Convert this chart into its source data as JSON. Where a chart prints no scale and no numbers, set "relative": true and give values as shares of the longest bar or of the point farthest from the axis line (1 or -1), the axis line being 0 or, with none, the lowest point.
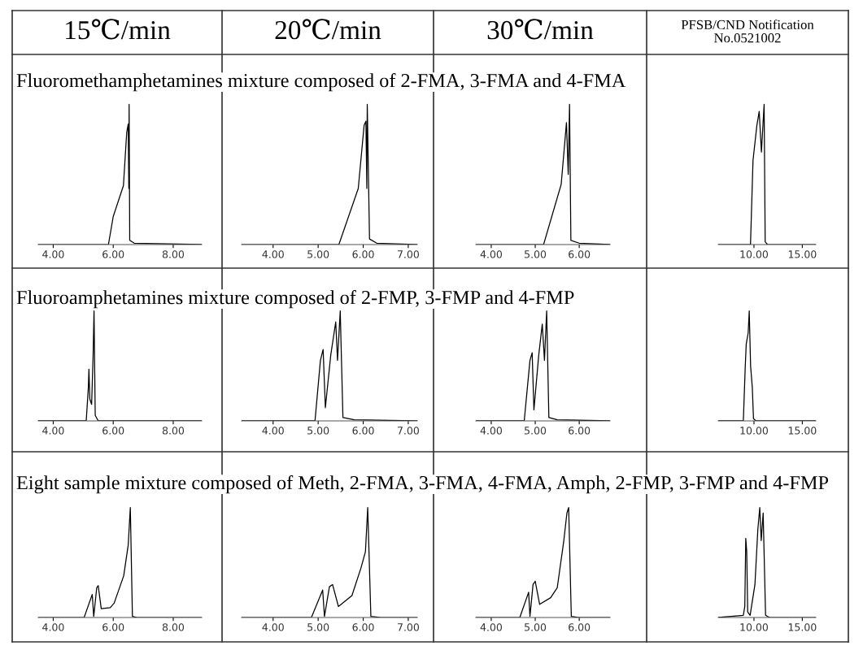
{
  "chart_data": [
    {
      "type": "line",
      "title": "15℃/min",
      "subtitle": "Fluoromethamphetamines mixture composed of 2-FMA, 3-FMA and 4-FMA",
      "relative": true,
      "x": [
        3.5,
        5.84,
        6.0,
        6.34,
        6.45,
        6.5,
        6.52,
        6.53,
        6.55,
        6.7,
        8.95
      ],
      "series": [
        {
          "color": "#000000",
          "values": [
            0,
            0,
            0.2,
            0.42,
            0.8,
            0.86,
            0.4,
            1.0,
            0.03,
            0.01,
            0
          ]
        }
      ],
      "xlim": [
        3.5,
        8.95
      ],
      "xticks": [
        {
          "value": 4,
          "label": "4.00"
        },
        {
          "value": 6,
          "label": "6.00"
        },
        {
          "value": 8,
          "label": "8.00"
        }
      ],
      "tick_labels": "x"
    },
    {
      "type": "line",
      "title": "20℃/min",
      "relative": true,
      "x": [
        3.3,
        5.46,
        5.89,
        6.02,
        6.06,
        6.08,
        6.09,
        6.14,
        6.3,
        7.2
      ],
      "series": [
        {
          "color": "#000000",
          "values": [
            0,
            0,
            0.4,
            0.85,
            0.88,
            0.4,
            1.0,
            0.04,
            0.01,
            0
          ]
        }
      ],
      "xlim": [
        3.3,
        7.2
      ],
      "xticks": [
        {
          "value": 4,
          "label": "4.00"
        },
        {
          "value": 5,
          "label": "5.00"
        },
        {
          "value": 6,
          "label": "6.00"
        },
        {
          "value": 7,
          "label": "7.00"
        }
      ],
      "tick_labels": "x"
    },
    {
      "type": "line",
      "title": "30℃/min",
      "relative": true,
      "x": [
        3.65,
        5.19,
        5.59,
        5.71,
        5.75,
        5.78,
        5.81,
        6.0,
        6.7
      ],
      "series": [
        {
          "color": "#000000",
          "values": [
            0,
            0,
            0.43,
            0.87,
            0.5,
            1.0,
            0.03,
            0.01,
            0
          ]
        }
      ],
      "xlim": [
        3.65,
        6.7
      ],
      "xticks": [
        {
          "value": 4,
          "label": "4.00"
        },
        {
          "value": 5,
          "label": "5.00"
        },
        {
          "value": 6,
          "label": "6.00"
        }
      ],
      "tick_labels": "x"
    },
    {
      "type": "line",
      "title": "PFSB/CND Notification\nNo.0521002",
      "relative": true,
      "x": [
        6.3,
        9.64,
        9.9,
        10.3,
        10.54,
        10.77,
        11.05,
        11.16,
        11.4,
        16.4
      ],
      "series": [
        {
          "color": "#000000",
          "values": [
            0,
            0,
            0.6,
            0.85,
            0.95,
            0.66,
            1.0,
            0.02,
            0,
            0
          ]
        }
      ],
      "xlim": [
        6.3,
        16.4
      ],
      "xticks": [
        {
          "value": 10,
          "label": "10.00"
        },
        {
          "value": 15,
          "label": "15.00"
        }
      ],
      "tick_labels": "x"
    },
    {
      "type": "line",
      "subtitle": "Fluoroamphetamines mixture composed of 2-FMP, 3-FMP and 4-FMP",
      "relative": true,
      "x": [
        3.5,
        5.1,
        5.17,
        5.19,
        5.22,
        5.28,
        5.33,
        5.36,
        5.4,
        5.5,
        8.95
      ],
      "series": [
        {
          "color": "#000000",
          "values": [
            0,
            0,
            0.3,
            0.47,
            0.2,
            0.15,
            0.6,
            1.0,
            0.05,
            0,
            0
          ]
        }
      ],
      "xlim": [
        3.5,
        8.95
      ],
      "xticks": [
        {
          "value": 4,
          "label": "4.00"
        },
        {
          "value": 6,
          "label": "6.00"
        },
        {
          "value": 8,
          "label": "8.00"
        }
      ],
      "tick_labels": "x"
    },
    {
      "type": "line",
      "relative": true,
      "x": [
        3.3,
        4.93,
        5.05,
        5.11,
        5.16,
        5.28,
        5.39,
        5.43,
        5.49,
        5.55,
        5.8,
        7.2
      ],
      "series": [
        {
          "color": "#000000",
          "values": [
            0,
            0,
            0.55,
            0.65,
            0.12,
            0.6,
            0.9,
            0.55,
            1.0,
            0.03,
            0.01,
            0
          ]
        }
      ],
      "xlim": [
        3.3,
        7.2
      ],
      "xticks": [
        {
          "value": 4,
          "label": "4.00"
        },
        {
          "value": 5,
          "label": "5.00"
        },
        {
          "value": 6,
          "label": "6.00"
        },
        {
          "value": 7,
          "label": "7.00"
        }
      ],
      "tick_labels": "x"
    },
    {
      "type": "line",
      "relative": true,
      "x": [
        3.65,
        4.75,
        4.88,
        4.93,
        4.97,
        5.08,
        5.16,
        5.21,
        5.26,
        5.31,
        5.5,
        6.7
      ],
      "series": [
        {
          "color": "#000000",
          "values": [
            0,
            0,
            0.55,
            0.62,
            0.1,
            0.6,
            0.88,
            0.55,
            1.0,
            0.03,
            0.01,
            0
          ]
        }
      ],
      "xlim": [
        3.65,
        6.7
      ],
      "xticks": [
        {
          "value": 4,
          "label": "4.00"
        },
        {
          "value": 5,
          "label": "5.00"
        },
        {
          "value": 6,
          "label": "6.00"
        }
      ],
      "tick_labels": "x"
    },
    {
      "type": "line",
      "relative": true,
      "x": [
        6.3,
        8.9,
        9.1,
        9.2,
        9.4,
        9.51,
        9.65,
        9.83,
        9.95,
        10.2,
        16.4
      ],
      "series": [
        {
          "color": "#000000",
          "values": [
            0,
            0,
            0.5,
            0.7,
            0.8,
            1.0,
            0.5,
            0.3,
            0.02,
            0,
            0
          ]
        }
      ],
      "xlim": [
        6.3,
        16.4
      ],
      "xticks": [
        {
          "value": 10,
          "label": "10.00"
        },
        {
          "value": 15,
          "label": "15.00"
        }
      ],
      "tick_labels": "x"
    },
    {
      "type": "line",
      "subtitle": "Eight sample mixture composed of Meth, 2-FMA, 3-FMA, 4-FMA, Amph, 2-FMP, 3-FMP and 4-FMP",
      "relative": true,
      "x": [
        3.5,
        5.03,
        5.3,
        5.35,
        5.45,
        5.5,
        5.6,
        5.9,
        6.03,
        6.35,
        6.5,
        6.57,
        6.64,
        6.8,
        8.95
      ],
      "series": [
        {
          "color": "#000000",
          "values": [
            0,
            0,
            0.21,
            0.01,
            0.27,
            0.29,
            0.08,
            0.09,
            0.13,
            0.38,
            0.66,
            1.0,
            0.01,
            0,
            0
          ]
        }
      ],
      "xlim": [
        3.5,
        8.95
      ],
      "xticks": [
        {
          "value": 4,
          "label": "4.00"
        },
        {
          "value": 6,
          "label": "6.00"
        },
        {
          "value": 8,
          "label": "8.00"
        }
      ],
      "tick_labels": "x"
    },
    {
      "type": "line",
      "relative": true,
      "x": [
        3.3,
        4.85,
        5.05,
        5.1,
        5.14,
        5.25,
        5.32,
        5.45,
        5.6,
        5.75,
        5.95,
        6.05,
        6.1,
        6.17,
        6.4,
        7.2
      ],
      "series": [
        {
          "color": "#000000",
          "values": [
            0,
            0,
            0.2,
            0.25,
            0.01,
            0.28,
            0.3,
            0.1,
            0.15,
            0.2,
            0.45,
            0.6,
            1.0,
            0.01,
            0,
            0
          ]
        }
      ],
      "xlim": [
        3.3,
        7.2
      ],
      "xticks": [
        {
          "value": 4,
          "label": "4.00"
        },
        {
          "value": 5,
          "label": "5.00"
        },
        {
          "value": 6,
          "label": "6.00"
        },
        {
          "value": 7,
          "label": "7.00"
        }
      ],
      "tick_labels": "x"
    },
    {
      "type": "line",
      "relative": true,
      "x": [
        3.65,
        4.65,
        4.85,
        4.88,
        4.95,
        5.0,
        5.1,
        5.35,
        5.5,
        5.65,
        5.72,
        5.76,
        5.82,
        6.0,
        6.7
      ],
      "series": [
        {
          "color": "#000000",
          "values": [
            0,
            0,
            0.23,
            0.01,
            0.3,
            0.33,
            0.12,
            0.18,
            0.27,
            0.7,
            0.95,
            1.0,
            0.01,
            0,
            0
          ]
        }
      ],
      "xlim": [
        3.65,
        6.7
      ],
      "xticks": [
        {
          "value": 4,
          "label": "4.00"
        },
        {
          "value": 5,
          "label": "5.00"
        },
        {
          "value": 6,
          "label": "6.00"
        }
      ],
      "tick_labels": "x"
    },
    {
      "type": "line",
      "relative": true,
      "x": [
        6.3,
        8.9,
        9.05,
        9.15,
        9.25,
        9.35,
        9.6,
        10.1,
        10.4,
        10.6,
        10.75,
        10.95,
        11.2,
        11.6,
        16.4
      ],
      "series": [
        {
          "color": "#000000",
          "values": [
            0,
            0.02,
            0.1,
            0.72,
            0.6,
            0.05,
            0.02,
            0.3,
            0.8,
            1.0,
            0.7,
            0.95,
            0.02,
            0,
            0
          ]
        }
      ],
      "xlim": [
        6.3,
        16.4
      ],
      "xticks": [
        {
          "value": 10,
          "label": "10.00"
        },
        {
          "value": 15,
          "label": "15.00"
        }
      ],
      "tick_labels": "x"
    }
  ]
}
